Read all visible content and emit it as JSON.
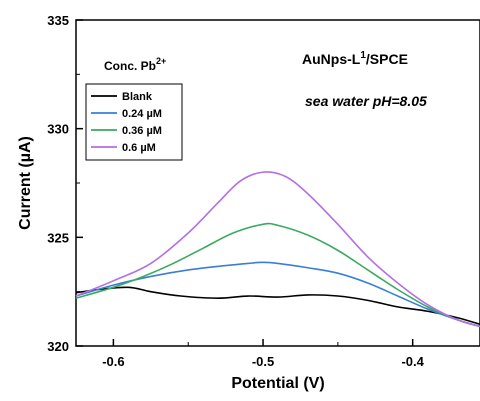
{
  "chart_data": {
    "type": "line",
    "xlabel": "Potential (V)",
    "ylabel": "Current (µA)",
    "xlim": [
      -0.625,
      -0.355
    ],
    "ylim": [
      320,
      335
    ],
    "xticks": [
      -0.6,
      -0.5,
      -0.4
    ],
    "xtick_labels": [
      "-0.6",
      "-0.5",
      "-0.4"
    ],
    "yticks": [
      320,
      325,
      330,
      335
    ],
    "ytick_labels": [
      "320",
      "325",
      "330",
      "335"
    ],
    "legend": {
      "title": "Conc. Pb",
      "title_sup": "2+",
      "placement": "top-left",
      "entries": [
        "Blank",
        "0.24 µM",
        "0.36 µM",
        "0.6 µM"
      ]
    },
    "annotations": {
      "electrode_main": "AuNps-L",
      "electrode_sup": "1",
      "electrode_rest": "/SPCE",
      "medium": "sea water pH=8.05"
    },
    "series": [
      {
        "name": "Blank",
        "color": "#000000",
        "x": [
          -0.625,
          -0.61,
          -0.59,
          -0.575,
          -0.555,
          -0.53,
          -0.51,
          -0.49,
          -0.47,
          -0.45,
          -0.43,
          -0.41,
          -0.39,
          -0.37,
          -0.355
        ],
        "y": [
          322.45,
          322.6,
          322.7,
          322.5,
          322.3,
          322.2,
          322.3,
          322.25,
          322.35,
          322.3,
          322.1,
          321.8,
          321.6,
          321.3,
          321.0
        ]
      },
      {
        "name": "0.24 µM",
        "color": "#3a7fd5",
        "x": [
          -0.625,
          -0.6,
          -0.575,
          -0.55,
          -0.525,
          -0.51,
          -0.5,
          -0.49,
          -0.47,
          -0.45,
          -0.43,
          -0.41,
          -0.39,
          -0.37,
          -0.355
        ],
        "y": [
          322.3,
          322.8,
          323.2,
          323.5,
          323.7,
          323.8,
          323.85,
          323.8,
          323.6,
          323.35,
          322.9,
          322.3,
          321.7,
          321.2,
          320.9
        ]
      },
      {
        "name": "0.36 µM",
        "color": "#3aaa5f",
        "x": [
          -0.625,
          -0.6,
          -0.58,
          -0.56,
          -0.54,
          -0.52,
          -0.5,
          -0.49,
          -0.47,
          -0.45,
          -0.43,
          -0.41,
          -0.39,
          -0.37,
          -0.355
        ],
        "y": [
          322.2,
          322.7,
          323.2,
          323.8,
          324.5,
          325.2,
          325.6,
          325.55,
          325.1,
          324.4,
          323.5,
          322.6,
          321.8,
          321.2,
          320.9
        ]
      },
      {
        "name": "0.6 µM",
        "color": "#b36fe6",
        "x": [
          -0.625,
          -0.6,
          -0.575,
          -0.55,
          -0.53,
          -0.515,
          -0.5,
          -0.485,
          -0.47,
          -0.45,
          -0.43,
          -0.41,
          -0.39,
          -0.37,
          -0.355
        ],
        "y": [
          322.3,
          323.0,
          323.8,
          325.2,
          326.6,
          327.6,
          328.0,
          327.8,
          327.0,
          325.6,
          324.1,
          322.9,
          321.9,
          321.2,
          320.9
        ]
      }
    ]
  }
}
